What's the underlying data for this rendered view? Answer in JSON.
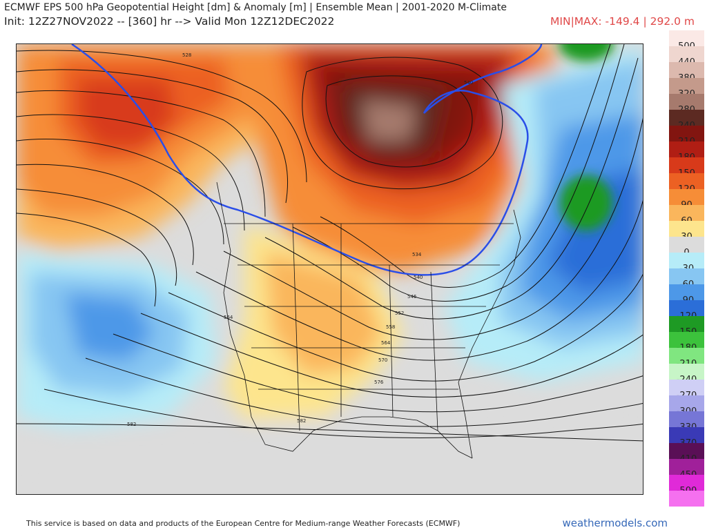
{
  "header": {
    "title_line1": "ECMWF EPS 500 hPa Geopotential Height [dm] & Anomaly [m] | Ensemble Mean | 2001-2020 M-Climate",
    "title_line2": "Init: 12Z27NOV2022 -- [360] hr --> Valid Mon 12Z12DEC2022",
    "minmax": "MIN|MAX: -149.4 | 292.0 m"
  },
  "legend": {
    "bins": [
      {
        "label": "500",
        "color": "#fbe9e6"
      },
      {
        "label": "440",
        "color": "#efd6cf"
      },
      {
        "label": "380",
        "color": "#dcb9ae"
      },
      {
        "label": "320",
        "color": "#c49a8b"
      },
      {
        "label": "280",
        "color": "#a67a6d"
      },
      {
        "label": "240",
        "color": "#5c2a22"
      },
      {
        "label": "210",
        "color": "#821510"
      },
      {
        "label": "180",
        "color": "#b01e14"
      },
      {
        "label": "150",
        "color": "#d83a1a"
      },
      {
        "label": "120",
        "color": "#ec6123"
      },
      {
        "label": "90",
        "color": "#f68d37"
      },
      {
        "label": "60",
        "color": "#fab65c"
      },
      {
        "label": "30",
        "color": "#fde58d"
      },
      {
        "label": "0",
        "color": "#dcdcdc"
      },
      {
        "label": "-30",
        "color": "#b6ecf8"
      },
      {
        "label": "-60",
        "color": "#87c6f2"
      },
      {
        "label": "-90",
        "color": "#4d98e8"
      },
      {
        "label": "-120",
        "color": "#2b6ed8"
      },
      {
        "label": "-150",
        "color": "#1e9a24"
      },
      {
        "label": "-180",
        "color": "#3cc23c"
      },
      {
        "label": "-210",
        "color": "#80e680"
      },
      {
        "label": "-240",
        "color": "#c7f5c7"
      },
      {
        "label": "-270",
        "color": "#cfcff5"
      },
      {
        "label": "-300",
        "color": "#a7a7ea"
      },
      {
        "label": "-330",
        "color": "#7676d6"
      },
      {
        "label": "-370",
        "color": "#3a3ab6"
      },
      {
        "label": "-410",
        "color": "#5a0f56"
      },
      {
        "label": "-450",
        "color": "#a0209a"
      },
      {
        "label": "-500",
        "color": "#e02ad8"
      },
      {
        "label": "",
        "color": "#f570ef"
      }
    ]
  },
  "contour_labels": {
    "c540_ne": "540",
    "c540_w": "540",
    "c546": "546",
    "c552": "552",
    "c558": "558",
    "c564_w": "564",
    "c564_e": "564",
    "c570": "570",
    "c576": "576",
    "c582_s": "582",
    "c582_w": "582",
    "c534": "534",
    "c528": "528"
  },
  "footer": {
    "text": "This service is based on data and products of the European Centre for Medium-range Weather Forecasts (ECMWF)",
    "brand": "weathermodels.com"
  }
}
